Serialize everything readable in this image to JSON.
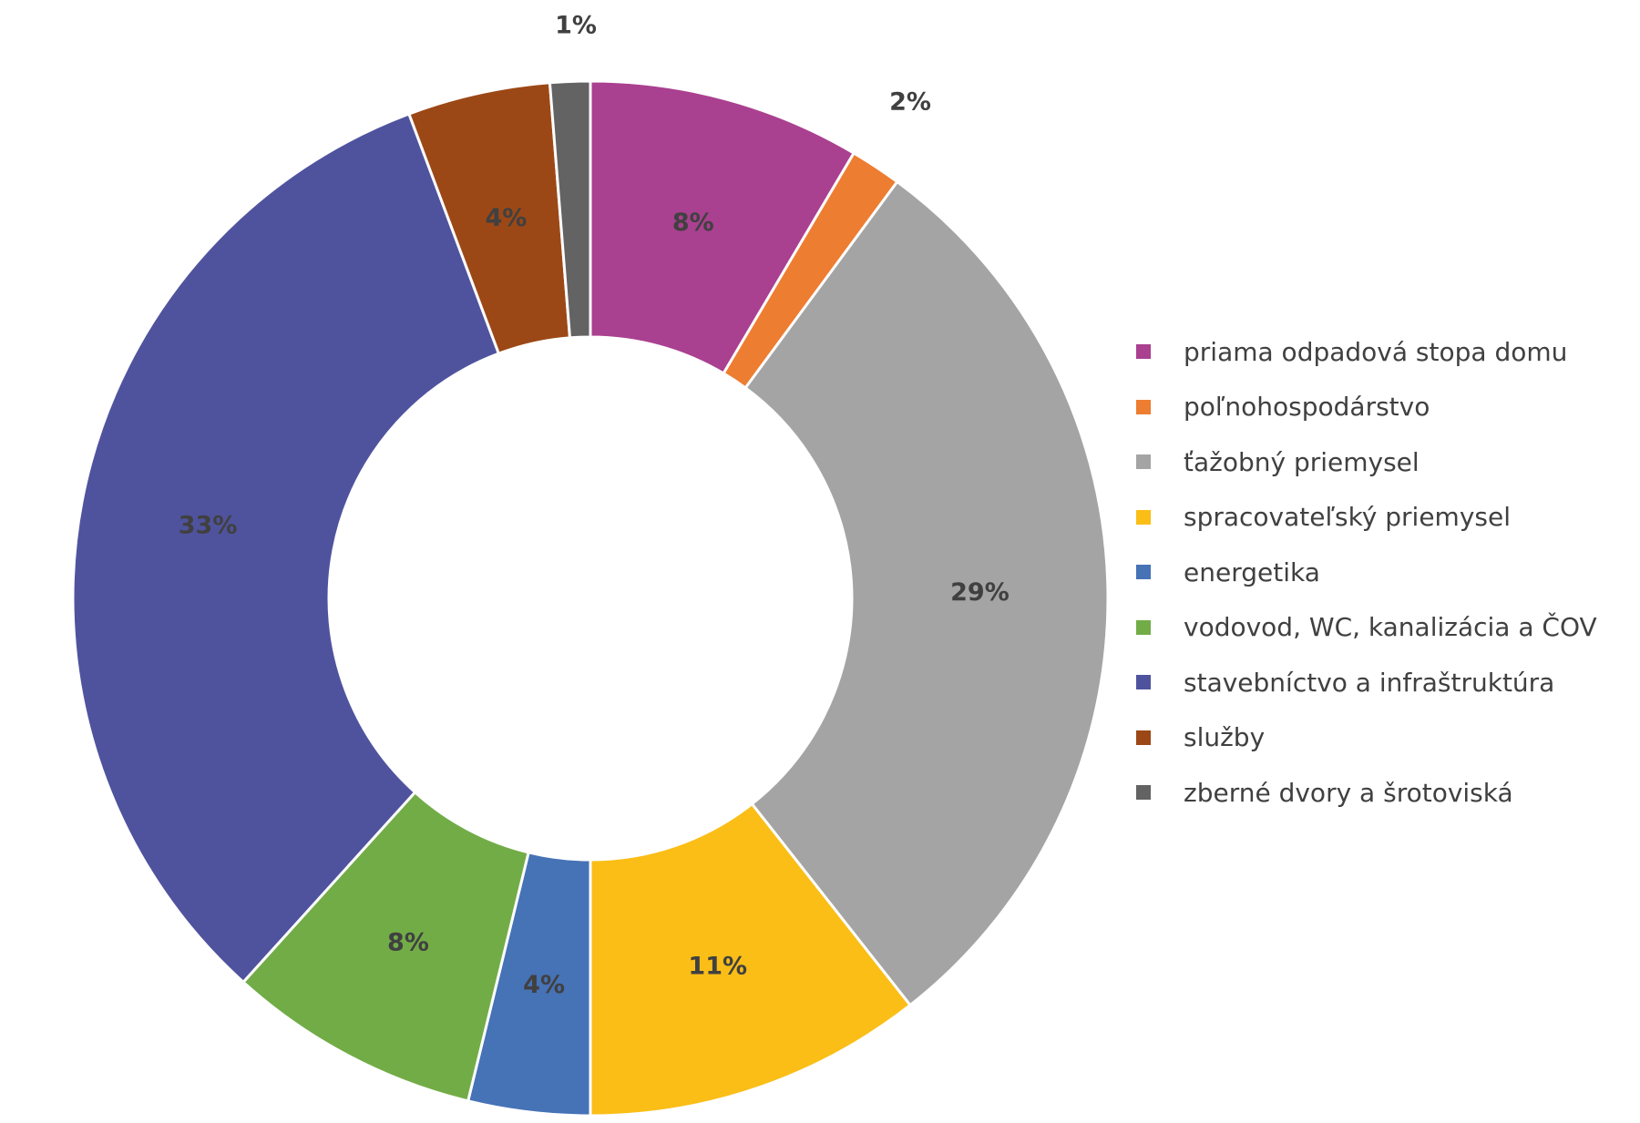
{
  "chart_data": {
    "type": "pie",
    "subtype": "doughnut",
    "legend_position": "right",
    "slices": [
      {
        "label": "priama odpadová stopa domu",
        "value": 8.5,
        "data_label": "8%",
        "color": "#AA4090"
      },
      {
        "label": "poľnohospodárstvo",
        "value": 1.6,
        "data_label": "2%",
        "color": "#ED7D31"
      },
      {
        "label": "ťažobný priemysel",
        "value": 29.3,
        "data_label": "29%",
        "color": "#A5A4A4"
      },
      {
        "label": "spracovateľský priemysel",
        "value": 10.6,
        "data_label": "11%",
        "color": "#FABE17"
      },
      {
        "label": "energetika",
        "value": 3.8,
        "data_label": "4%",
        "color": "#4672B6"
      },
      {
        "label": "vodovod, WC, kanalizácia a ČOV",
        "value": 7.9,
        "data_label": "8%",
        "color": "#72AC47"
      },
      {
        "label": "stavebníctvo a infraštruktúra",
        "value": 32.6,
        "data_label": "33%",
        "color": "#4F539E"
      },
      {
        "label": "služby",
        "value": 4.45,
        "data_label": "4%",
        "color": "#9C4816"
      },
      {
        "label": "zberné dvory a šrotoviská",
        "value": 1.25,
        "data_label": "1%",
        "color": "#636363"
      }
    ]
  }
}
